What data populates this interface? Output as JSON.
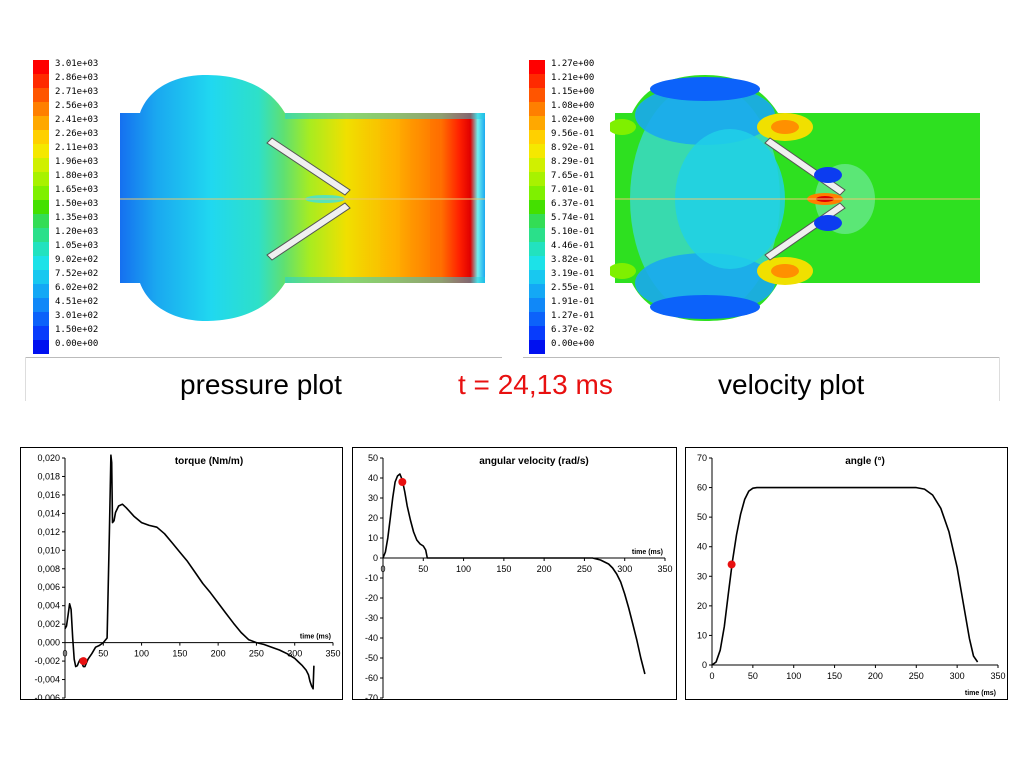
{
  "captions": {
    "pressure": "pressure plot",
    "time": "t = 24,13 ms",
    "velocity": "velocity plot"
  },
  "pressure_legend": {
    "labels": [
      "3.01e+03",
      "2.86e+03",
      "2.71e+03",
      "2.56e+03",
      "2.41e+03",
      "2.26e+03",
      "2.11e+03",
      "1.96e+03",
      "1.80e+03",
      "1.65e+03",
      "1.50e+03",
      "1.35e+03",
      "1.20e+03",
      "1.05e+03",
      "9.02e+02",
      "7.52e+02",
      "6.02e+02",
      "4.51e+02",
      "3.01e+02",
      "1.50e+02",
      "0.00e+00"
    ],
    "colors": [
      "#ff0000",
      "#ff2a00",
      "#ff5500",
      "#ff7f00",
      "#ffa800",
      "#ffd000",
      "#f5e800",
      "#d0f000",
      "#a8f200",
      "#7ff000",
      "#44e000",
      "#33dd55",
      "#2ae08a",
      "#22e2bf",
      "#1ce2e8",
      "#18c8f0",
      "#14a8f5",
      "#1088f8",
      "#0c62fa",
      "#083cfc",
      "#0010f0"
    ]
  },
  "velocity_legend": {
    "labels": [
      "1.27e+00",
      "1.21e+00",
      "1.15e+00",
      "1.08e+00",
      "1.02e+00",
      "9.56e-01",
      "8.92e-01",
      "8.29e-01",
      "7.65e-01",
      "7.01e-01",
      "6.37e-01",
      "5.74e-01",
      "5.10e-01",
      "4.46e-01",
      "3.82e-01",
      "3.19e-01",
      "2.55e-01",
      "1.91e-01",
      "1.27e-01",
      "6.37e-02",
      "0.00e+00"
    ],
    "colors": [
      "#ff0000",
      "#ff2a00",
      "#ff5500",
      "#ff7f00",
      "#ffa800",
      "#ffd000",
      "#f5e800",
      "#d0f000",
      "#a8f200",
      "#7ff000",
      "#44e000",
      "#33dd55",
      "#2ae08a",
      "#22e2bf",
      "#1ce2e8",
      "#18c8f0",
      "#14a8f5",
      "#1088f8",
      "#0c62fa",
      "#083cfc",
      "#0010f0"
    ]
  },
  "chart_data": [
    {
      "type": "line",
      "title": "torque (Nm/m)",
      "xlabel": "time (ms)",
      "ylabel": "",
      "xlim": [
        0,
        350
      ],
      "ylim": [
        -0.006,
        0.02
      ],
      "x_ticks": [
        0,
        50,
        100,
        150,
        200,
        250,
        300,
        350
      ],
      "y_ticks": [
        -0.006,
        -0.004,
        -0.002,
        0,
        0.002,
        0.004,
        0.006,
        0.008,
        0.01,
        0.012,
        0.014,
        0.016,
        0.018,
        0.02
      ],
      "y_tick_labels": [
        "-0,006",
        "-0,004",
        "-0,002",
        "0,000",
        "0,002",
        "0,004",
        "0,006",
        "0,008",
        "0,010",
        "0,012",
        "0,014",
        "0,016",
        "0,018",
        "0,020"
      ],
      "x": [
        0,
        2,
        4,
        6,
        8,
        10,
        12,
        14,
        16,
        18,
        20,
        22,
        24,
        26,
        30,
        35,
        40,
        45,
        50,
        55,
        58,
        60,
        61,
        62,
        64,
        66,
        70,
        75,
        80,
        90,
        100,
        110,
        120,
        130,
        140,
        150,
        160,
        170,
        180,
        190,
        200,
        210,
        220,
        230,
        240,
        250,
        260,
        270,
        280,
        290,
        300,
        305,
        310,
        315,
        318,
        320,
        322,
        324,
        325
      ],
      "y": [
        0.0015,
        0.0018,
        0.003,
        0.0042,
        0.0036,
        0.0005,
        -0.0018,
        -0.0026,
        -0.0025,
        -0.0021,
        -0.0018,
        -0.0022,
        -0.0026,
        -0.0026,
        -0.0018,
        -0.0012,
        -0.0005,
        -0.0003,
        0.0,
        0.0005,
        0.012,
        0.0203,
        0.0195,
        0.013,
        0.0132,
        0.0141,
        0.0148,
        0.015,
        0.0146,
        0.0137,
        0.013,
        0.0127,
        0.0125,
        0.0118,
        0.0108,
        0.0098,
        0.0088,
        0.0076,
        0.0064,
        0.0054,
        0.0043,
        0.0032,
        0.0021,
        0.0011,
        0.0003,
        0.0,
        -0.0002,
        -0.0005,
        -0.0008,
        -0.0012,
        -0.0017,
        -0.0021,
        -0.0025,
        -0.003,
        -0.0035,
        -0.0042,
        -0.0047,
        -0.005,
        -0.0025
      ],
      "marker": {
        "x": 24,
        "y": -0.002,
        "color": "#e81010"
      }
    },
    {
      "type": "line",
      "title": "angular velocity (rad/s)",
      "xlabel": "time (ms)",
      "ylabel": "",
      "xlim": [
        0,
        350
      ],
      "ylim": [
        -70,
        50
      ],
      "x_ticks": [
        0,
        50,
        100,
        150,
        200,
        250,
        300,
        350
      ],
      "y_ticks": [
        -70,
        -60,
        -50,
        -40,
        -30,
        -20,
        -10,
        0,
        10,
        20,
        30,
        40,
        50
      ],
      "y_tick_labels": [
        "-70",
        "-60",
        "-50",
        "-40",
        "-30",
        "-20",
        "-10",
        "0",
        "10",
        "20",
        "30",
        "40",
        "50"
      ],
      "x": [
        0,
        3,
        6,
        9,
        12,
        15,
        18,
        21,
        24,
        27,
        30,
        34,
        38,
        42,
        46,
        50,
        53,
        55,
        60,
        100,
        150,
        200,
        240,
        260,
        270,
        280,
        285,
        290,
        295,
        300,
        305,
        310,
        315,
        320,
        325
      ],
      "y": [
        0,
        3,
        10,
        20,
        30,
        38,
        41,
        42,
        39,
        33,
        26,
        19,
        13,
        9,
        7,
        6,
        4,
        0,
        0,
        0,
        0,
        0,
        0,
        0,
        -1,
        -3,
        -5,
        -8,
        -12,
        -18,
        -25,
        -33,
        -41,
        -50,
        -58
      ],
      "marker": {
        "x": 24,
        "y": 38,
        "color": "#e81010"
      }
    },
    {
      "type": "line",
      "title": "angle (°)",
      "xlabel": "time (ms)",
      "ylabel": "",
      "xlim": [
        0,
        350
      ],
      "ylim": [
        0,
        70
      ],
      "x_ticks": [
        0,
        50,
        100,
        150,
        200,
        250,
        300,
        350
      ],
      "y_ticks": [
        0,
        10,
        20,
        30,
        40,
        50,
        60,
        70
      ],
      "y_tick_labels": [
        "0",
        "10",
        "20",
        "30",
        "40",
        "50",
        "60",
        "70"
      ],
      "x": [
        0,
        5,
        10,
        15,
        20,
        25,
        30,
        35,
        40,
        45,
        50,
        55,
        100,
        200,
        250,
        260,
        270,
        280,
        290,
        300,
        305,
        310,
        315,
        320,
        325
      ],
      "y": [
        0,
        1,
        5,
        13,
        24,
        35,
        44,
        51,
        56,
        58.8,
        59.8,
        60,
        60,
        60,
        60,
        59.5,
        57.5,
        53,
        45,
        33,
        25,
        17,
        9,
        3,
        1
      ],
      "marker": {
        "x": 24,
        "y": 34,
        "color": "#e81010"
      }
    }
  ]
}
